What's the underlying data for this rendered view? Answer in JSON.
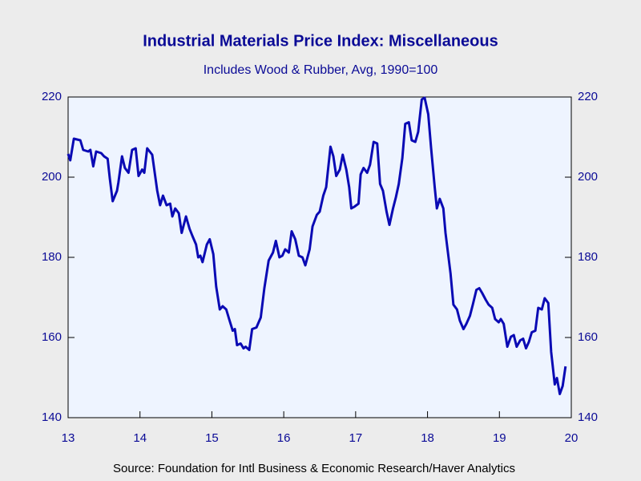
{
  "chart_data": {
    "type": "line",
    "title": "Industrial Materials Price Index: Miscellaneous",
    "subtitle": "Includes Wood & Rubber, Avg, 1990=100",
    "source": "Source:  Foundation for Intl Business & Economic Research/Haver Analytics",
    "color": "#0a0ab4",
    "x": [
      2013.0,
      2013.03,
      2013.08,
      2013.17,
      2013.21,
      2013.28,
      2013.31,
      2013.35,
      2013.39,
      2013.46,
      2013.5,
      2013.55,
      2013.58,
      2013.62,
      2013.68,
      2013.7,
      2013.75,
      2013.79,
      2013.84,
      2013.89,
      2013.94,
      2013.98,
      2014.03,
      2014.06,
      2014.1,
      2014.17,
      2014.24,
      2014.28,
      2014.32,
      2014.37,
      2014.42,
      2014.45,
      2014.49,
      2014.54,
      2014.58,
      2014.64,
      2014.69,
      2014.73,
      2014.78,
      2014.81,
      2014.84,
      2014.87,
      2014.93,
      2014.97,
      2015.02,
      2015.06,
      2015.11,
      2015.15,
      2015.2,
      2015.24,
      2015.29,
      2015.32,
      2015.35,
      2015.4,
      2015.44,
      2015.47,
      2015.52,
      2015.56,
      2015.62,
      2015.68,
      2015.73,
      2015.79,
      2015.85,
      2015.89,
      2015.94,
      2015.98,
      2016.02,
      2016.07,
      2016.11,
      2016.16,
      2016.21,
      2016.26,
      2016.3,
      2016.36,
      2016.4,
      2016.46,
      2016.5,
      2016.55,
      2016.59,
      2016.65,
      2016.69,
      2016.73,
      2016.78,
      2016.82,
      2016.87,
      2016.91,
      2016.94,
      2016.98,
      2017.04,
      2017.07,
      2017.11,
      2017.16,
      2017.2,
      2017.25,
      2017.3,
      2017.34,
      2017.38,
      2017.43,
      2017.47,
      2017.52,
      2017.56,
      2017.6,
      2017.65,
      2017.69,
      2017.74,
      2017.78,
      2017.83,
      2017.87,
      2017.92,
      2017.96,
      2018.01,
      2018.05,
      2018.1,
      2018.13,
      2018.17,
      2018.22,
      2018.25,
      2018.32,
      2018.36,
      2018.41,
      2018.45,
      2018.5,
      2018.54,
      2018.59,
      2018.63,
      2018.68,
      2018.72,
      2018.76,
      2018.81,
      2018.85,
      2018.9,
      2018.94,
      2018.99,
      2019.02,
      2019.06,
      2019.11,
      2019.16,
      2019.2,
      2019.24,
      2019.29,
      2019.33,
      2019.37,
      2019.41,
      2019.45,
      2019.5,
      2019.54,
      2019.59,
      2019.63,
      2019.68,
      2019.72,
      2019.77,
      2019.8,
      2019.84,
      2019.88,
      2019.92
    ],
    "values": [
      205.8,
      204.2,
      209.6,
      209.2,
      206.8,
      206.4,
      206.8,
      202.7,
      206.4,
      206,
      205.2,
      204.6,
      199.7,
      194,
      196.6,
      198.7,
      205.2,
      202.3,
      201.1,
      206.8,
      207.2,
      200.3,
      201.9,
      201.1,
      207.2,
      205.6,
      196.6,
      193,
      195.4,
      193,
      193.4,
      190.2,
      192.2,
      191,
      186.1,
      190.2,
      187.1,
      185.3,
      183.2,
      180,
      180.4,
      178.8,
      183.2,
      184.5,
      180.8,
      172.7,
      167,
      167.8,
      167,
      164.6,
      161.7,
      162.1,
      158.1,
      158.5,
      157.3,
      157.7,
      156.9,
      162.1,
      162.5,
      165,
      172.3,
      179.2,
      181.2,
      184.1,
      180,
      180.4,
      182,
      181.2,
      186.5,
      184.5,
      180.4,
      180,
      178,
      182,
      187.7,
      190.6,
      191.4,
      195.4,
      197.5,
      207.6,
      205.2,
      200.3,
      201.9,
      205.6,
      201.9,
      197.5,
      192.2,
      192.6,
      193.4,
      200.7,
      202.3,
      201.1,
      203.1,
      208.8,
      208.4,
      198.3,
      196.6,
      191.4,
      188.1,
      192.2,
      195,
      198.3,
      204.8,
      213.3,
      213.7,
      209.2,
      208.8,
      211.3,
      219.4,
      219.8,
      215.7,
      207.2,
      197.5,
      192.2,
      194.6,
      192.2,
      186.1,
      176,
      168.2,
      167,
      164.2,
      162.1,
      163.4,
      165.4,
      168.2,
      171.9,
      172.3,
      171.1,
      169.4,
      168.2,
      167.4,
      164.6,
      163.8,
      164.6,
      163.4,
      157.7,
      160.2,
      160.6,
      157.7,
      159.3,
      159.7,
      157.3,
      158.9,
      161.3,
      161.7,
      167.4,
      167,
      169.8,
      168.6,
      156.4,
      148.3,
      149.9,
      145.9,
      147.9,
      152.8
    ],
    "xlim": [
      2013,
      2020
    ],
    "xticks": [
      {
        "value": 2013,
        "label": "13"
      },
      {
        "value": 2014,
        "label": "14"
      },
      {
        "value": 2015,
        "label": "15"
      },
      {
        "value": 2016,
        "label": "16"
      },
      {
        "value": 2017,
        "label": "17"
      },
      {
        "value": 2018,
        "label": "18"
      },
      {
        "value": 2019,
        "label": "19"
      },
      {
        "value": 2020,
        "label": "20"
      }
    ],
    "ylim": [
      140,
      220
    ],
    "yticks": [
      140,
      160,
      180,
      200,
      220
    ],
    "y2lim": [
      140,
      220
    ],
    "y2ticks": [
      140,
      160,
      180,
      200,
      220
    ]
  }
}
